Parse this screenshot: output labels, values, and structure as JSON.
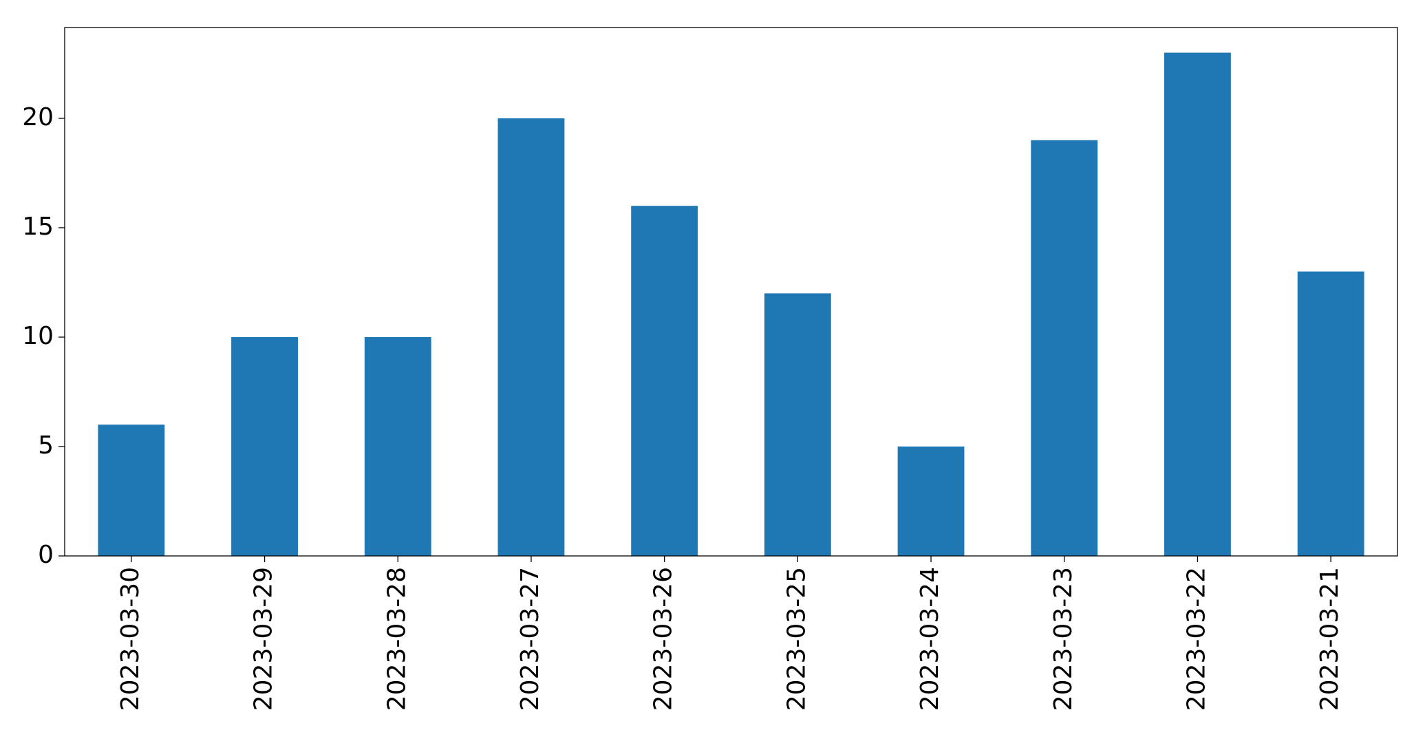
{
  "chart_data": {
    "type": "bar",
    "categories": [
      "2023-03-30",
      "2023-03-29",
      "2023-03-28",
      "2023-03-27",
      "2023-03-26",
      "2023-03-25",
      "2023-03-24",
      "2023-03-23",
      "2023-03-22",
      "2023-03-21"
    ],
    "values": [
      6,
      10,
      10,
      20,
      16,
      12,
      5,
      19,
      23,
      13
    ],
    "color": "#1f77b4",
    "ylim": [
      0,
      24.15
    ],
    "yticks": [
      0,
      5,
      10,
      15,
      20
    ],
    "grid": false
  }
}
